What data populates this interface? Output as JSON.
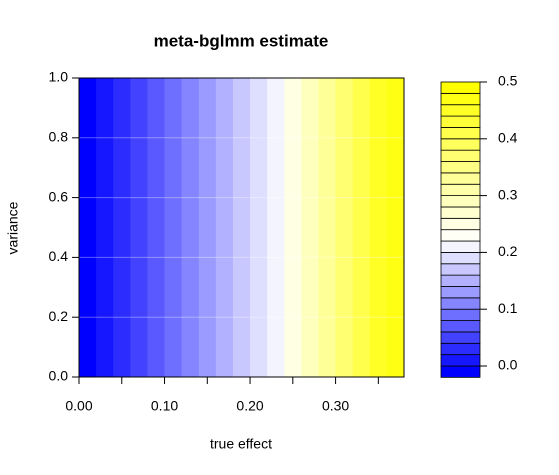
{
  "chart_data": {
    "type": "filled_contour",
    "title": "meta-bglmm estimate",
    "x_label": "true effect",
    "y_label": "variance",
    "x": [
      0,
      0.02,
      0.04,
      0.06,
      0.08,
      0.1,
      0.12,
      0.14,
      0.16,
      0.18,
      0.2,
      0.22,
      0.24,
      0.26,
      0.28,
      0.3,
      0.32,
      0.34,
      0.36,
      0.38
    ],
    "values": [
      -0.01,
      0.01,
      0.03,
      0.05,
      0.07,
      0.09,
      0.11,
      0.13,
      0.15,
      0.17,
      0.19,
      0.21,
      0.25,
      0.29,
      0.33,
      0.37,
      0.41,
      0.44,
      0.47,
      0.49
    ],
    "xlim": [
      0,
      0.38
    ],
    "ylim": [
      0,
      1
    ],
    "xticks": [
      {
        "value": 0,
        "label": "0.00"
      },
      {
        "value": 0.05,
        "label": null
      },
      {
        "value": 0.1,
        "label": "0.10"
      },
      {
        "value": 0.15,
        "label": null
      },
      {
        "value": 0.2,
        "label": "0.20"
      },
      {
        "value": 0.25,
        "label": null
      },
      {
        "value": 0.3,
        "label": "0.30"
      },
      {
        "value": 0.35,
        "label": null
      }
    ],
    "yticks": [
      {
        "value": 0,
        "label": "0.0"
      },
      0.2,
      0.4,
      0.6,
      0.8,
      {
        "value": 1,
        "label": "1.0"
      }
    ],
    "levels": [
      -0.02,
      0,
      0.02,
      0.04,
      0.06,
      0.08,
      0.1,
      0.12,
      0.14,
      0.16,
      0.18,
      0.2,
      0.22,
      0.24,
      0.26,
      0.28,
      0.3,
      0.32,
      0.34,
      0.36,
      0.38,
      0.4,
      0.42,
      0.44,
      0.46,
      0.48,
      0.5
    ],
    "zticks": [
      {
        "value": 0,
        "label": "0.0"
      },
      0.1,
      0.2,
      0.3,
      0.4,
      0.5
    ],
    "colors": [
      "#0000ff",
      "#ffffff",
      "#ffff00"
    ]
  }
}
